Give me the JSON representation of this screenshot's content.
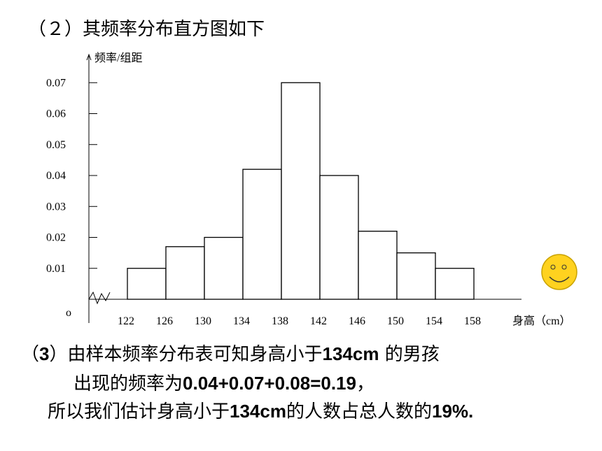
{
  "heading": "（２）其频率分布直方图如下",
  "chart_data": {
    "type": "histogram",
    "y_label": "频率/组距",
    "x_label": "身高（cm）",
    "origin_label": "o",
    "bins": [
      122,
      126,
      130,
      134,
      138,
      142,
      146,
      150,
      154,
      158
    ],
    "values": [
      0.01,
      0.017,
      0.02,
      0.042,
      0.07,
      0.04,
      0.022,
      0.015,
      0.01
    ],
    "color": "#ffffff",
    "edge_color": "#000000",
    "xlim": [
      118,
      162
    ],
    "xticks": [
      122,
      126,
      130,
      134,
      138,
      142,
      146,
      150,
      154,
      158
    ],
    "ylim": [
      0,
      0.08
    ],
    "yticks": [
      0.01,
      0.02,
      0.03,
      0.04,
      0.05,
      0.06,
      0.07
    ],
    "axis_break": true,
    "grid": false
  },
  "conclusion": [
    [
      "（",
      "3",
      "）由样本频率分布表可知身高小于",
      "134cm",
      " 的男孩"
    ],
    [
      "出现的频率为",
      "0.04+0.07+0.08=0.19",
      "，"
    ],
    [
      "所以我们估计身高小于",
      "134cm",
      "的人数占总人数的",
      "19%."
    ]
  ]
}
